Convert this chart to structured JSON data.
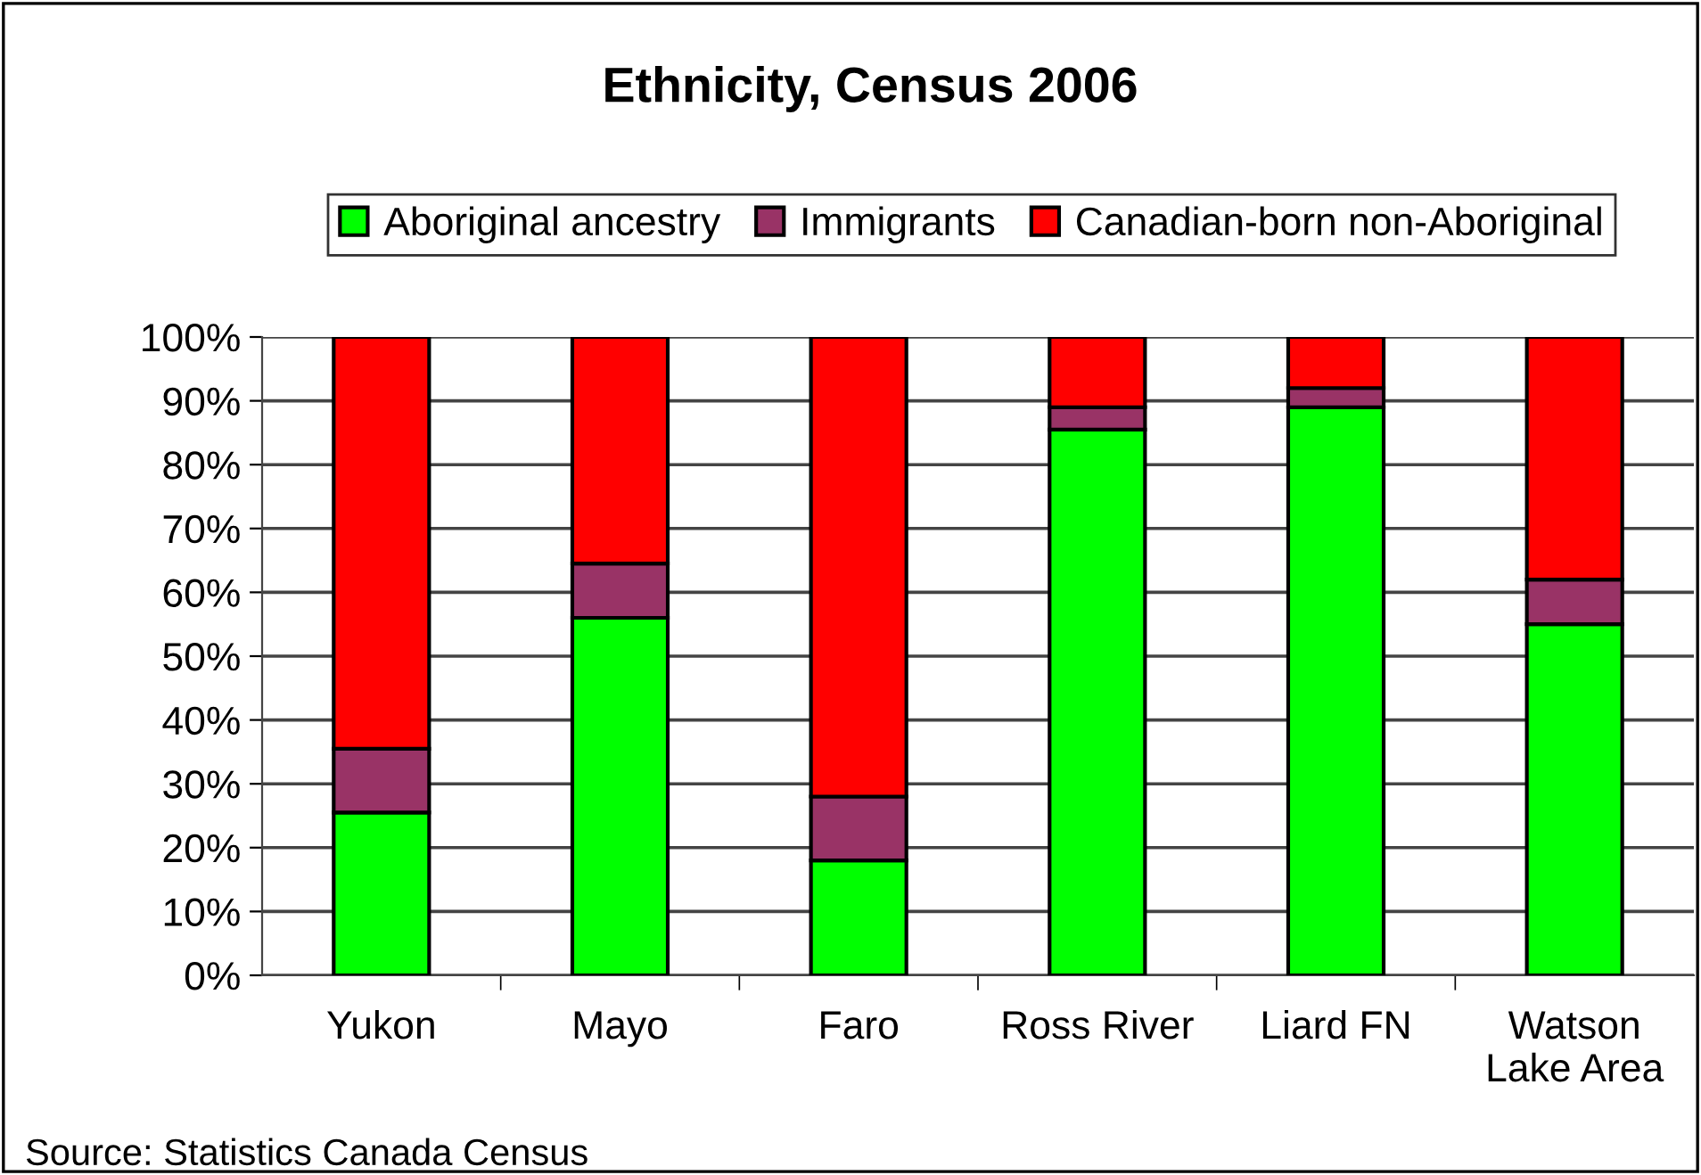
{
  "chart_data": {
    "type": "bar",
    "title": "Ethnicity, Census 2006",
    "stacked": true,
    "categories": [
      "Yukon",
      "Mayo",
      "Faro",
      "Ross River",
      "Liard FN",
      "Watson\nLake Area"
    ],
    "series": [
      {
        "name": "Aboriginal ancestry",
        "color": "#00ff00",
        "values": [
          25.5,
          56,
          18,
          85.5,
          89,
          55
        ]
      },
      {
        "name": "Immigrants",
        "color": "#993366",
        "values": [
          10,
          8.5,
          10,
          3.5,
          3,
          7
        ]
      },
      {
        "name": "Canadian-born non-Aboriginal",
        "color": "#ff0000",
        "values": [
          64.5,
          35.5,
          72,
          11,
          8,
          38
        ]
      }
    ],
    "ylim": [
      0,
      100
    ],
    "yticks": [
      {
        "value": 0,
        "label": "0%"
      },
      {
        "value": 10,
        "label": "10%"
      },
      {
        "value": 20,
        "label": "20%"
      },
      {
        "value": 30,
        "label": "30%"
      },
      {
        "value": 40,
        "label": "40%"
      },
      {
        "value": 50,
        "label": "50%"
      },
      {
        "value": 60,
        "label": "60%"
      },
      {
        "value": 70,
        "label": "70%"
      },
      {
        "value": 80,
        "label": "80%"
      },
      {
        "value": 90,
        "label": "90%"
      },
      {
        "value": 100,
        "label": "100%"
      }
    ],
    "grid": "y",
    "legend": "top",
    "annotations": [
      "Source: Statistics Canada Census"
    ]
  }
}
